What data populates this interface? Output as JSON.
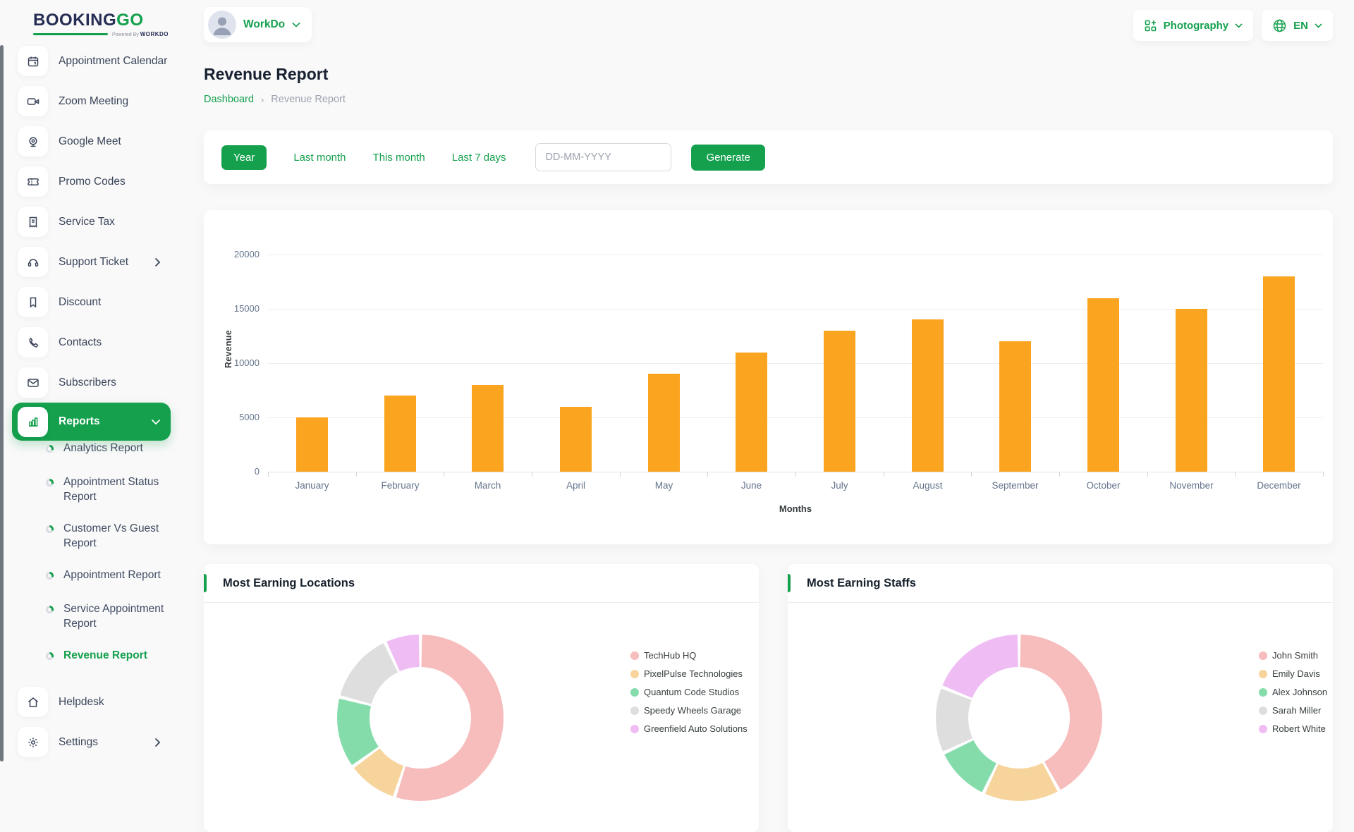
{
  "brand": {
    "name_primary": "BOOKING",
    "name_accent": "GO",
    "powered_prefix": "Powered By",
    "powered_name": "WORKDO"
  },
  "header": {
    "workspace": "WorkDo",
    "business": "Photography",
    "language": "EN"
  },
  "sidebar": {
    "items": [
      {
        "label": "Appointment Calendar",
        "icon": "calendar-icon"
      },
      {
        "label": "Zoom Meeting",
        "icon": "video-icon"
      },
      {
        "label": "Google Meet",
        "icon": "webcam-icon"
      },
      {
        "label": "Promo Codes",
        "icon": "ticket-icon"
      },
      {
        "label": "Service Tax",
        "icon": "receipt-icon"
      },
      {
        "label": "Support Ticket",
        "icon": "headset-icon",
        "chevron": "right"
      },
      {
        "label": "Discount",
        "icon": "bookmark-icon"
      },
      {
        "label": "Contacts",
        "icon": "phone-icon"
      },
      {
        "label": "Subscribers",
        "icon": "mail-icon"
      },
      {
        "label": "Reports",
        "icon": "bar-chart-icon",
        "active": true,
        "chevron": "down"
      }
    ],
    "report_subitems": [
      {
        "label": "Analytics Report"
      },
      {
        "label": "Appointment Status Report"
      },
      {
        "label": "Customer Vs Guest Report"
      },
      {
        "label": "Appointment Report"
      },
      {
        "label": "Service Appointment Report"
      },
      {
        "label": "Revenue Report",
        "active": true
      }
    ],
    "footer_items": [
      {
        "label": "Helpdesk",
        "icon": "home-icon"
      },
      {
        "label": "Settings",
        "icon": "gear-icon",
        "chevron": "right"
      }
    ]
  },
  "page": {
    "title": "Revenue Report",
    "breadcrumb": [
      "Dashboard",
      "Revenue Report"
    ]
  },
  "filters": {
    "options": [
      "Year",
      "Last month",
      "This month",
      "Last 7 days"
    ],
    "active": "Year",
    "date_placeholder": "DD-MM-YYYY",
    "generate_label": "Generate"
  },
  "colors": {
    "accent_green": "#14a04d",
    "bar_orange": "#faa41f"
  },
  "chart_data": [
    {
      "type": "bar",
      "categories": [
        "January",
        "February",
        "March",
        "April",
        "May",
        "June",
        "July",
        "August",
        "September",
        "October",
        "November",
        "December"
      ],
      "values": [
        5000,
        7000,
        8000,
        6000,
        9000,
        11000,
        13000,
        14000,
        12000,
        16000,
        15000,
        18000
      ],
      "title": "",
      "xlabel": "Months",
      "ylabel": "Revenue",
      "ylim": [
        0,
        20000
      ],
      "yticks": [
        20000,
        15000,
        10000,
        5000,
        0
      ],
      "bar_color": "#faa41f",
      "grid": true,
      "legend": false
    },
    {
      "type": "pie",
      "title": "Most Earning Locations",
      "labels": [
        "TechHub HQ",
        "PixelPulse Technologies",
        "Quantum Code Studios",
        "Speedy Wheels Garage",
        "Greenfield Auto Solutions"
      ],
      "values": [
        55,
        10,
        14,
        14,
        7
      ],
      "colors": [
        "#f7bcbc",
        "#f7d49c",
        "#85dcab",
        "#dedede",
        "#efbdf4"
      ],
      "donut": true,
      "legend_position": "right"
    },
    {
      "type": "pie",
      "title": "Most Earning Staffs",
      "labels": [
        "John Smith",
        "Emily Davis",
        "Alex Johnson",
        "Sarah Miller",
        "Robert White"
      ],
      "values": [
        42,
        15,
        11,
        13,
        19
      ],
      "colors": [
        "#f7bcbc",
        "#f7d49c",
        "#85dcab",
        "#dedede",
        "#efbdf4"
      ],
      "donut": true,
      "legend_position": "right"
    }
  ]
}
